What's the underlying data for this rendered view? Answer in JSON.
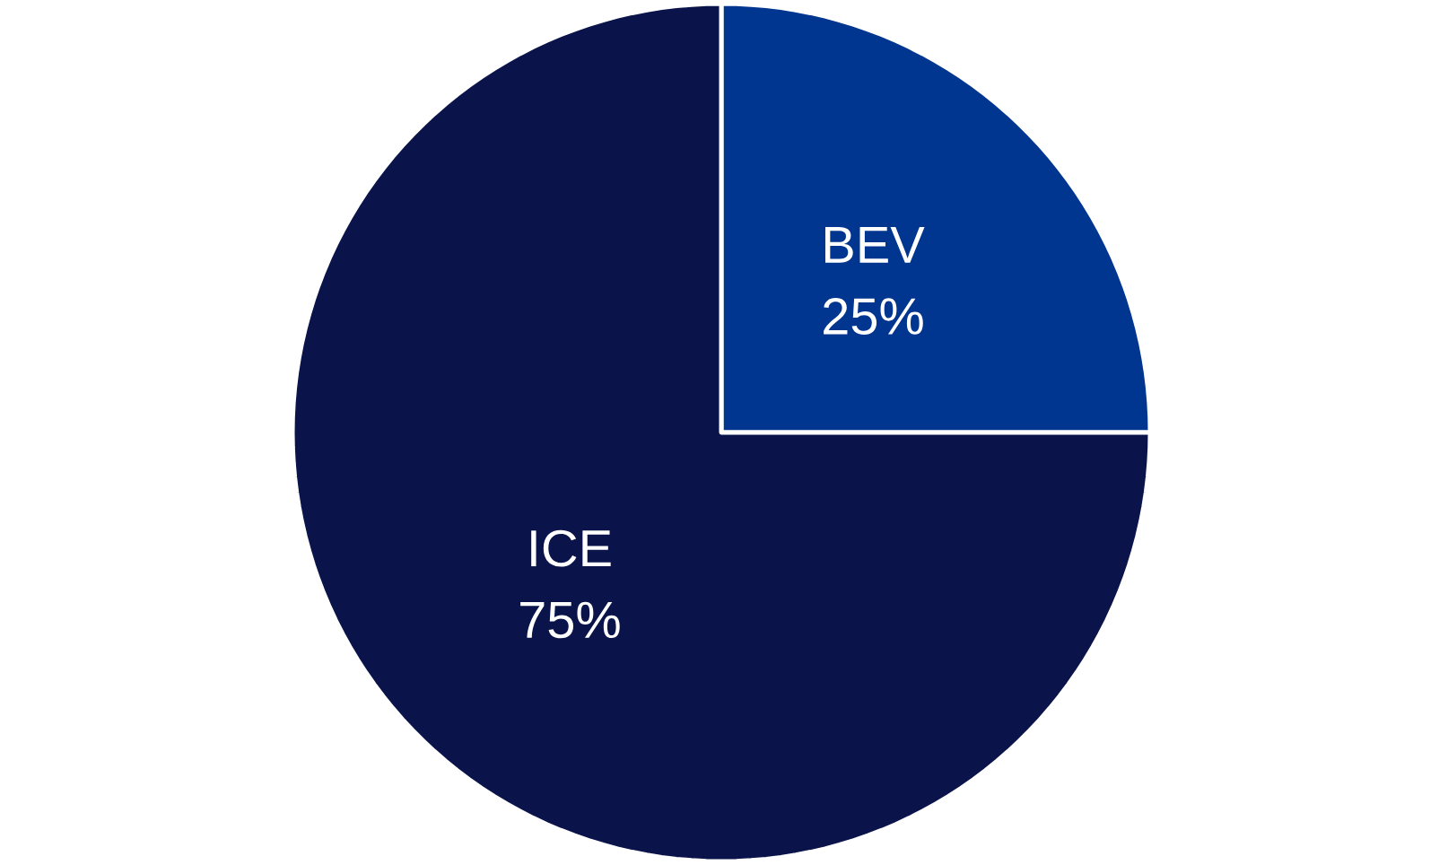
{
  "chart_data": {
    "type": "pie",
    "categories": [
      "BEV",
      "ICE"
    ],
    "values": [
      25,
      75
    ],
    "colors": [
      "#00368f",
      "#0a144a"
    ],
    "value_labels": [
      "25%",
      "75%"
    ]
  }
}
